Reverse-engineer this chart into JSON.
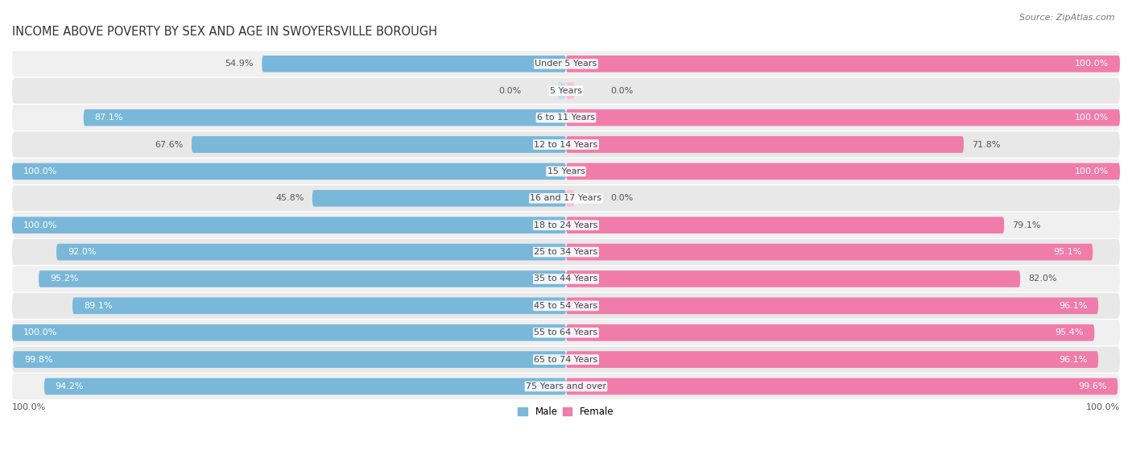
{
  "title": "INCOME ABOVE POVERTY BY SEX AND AGE IN SWOYERSVILLE BOROUGH",
  "source": "Source: ZipAtlas.com",
  "categories": [
    "Under 5 Years",
    "5 Years",
    "6 to 11 Years",
    "12 to 14 Years",
    "15 Years",
    "16 and 17 Years",
    "18 to 24 Years",
    "25 to 34 Years",
    "35 to 44 Years",
    "45 to 54 Years",
    "55 to 64 Years",
    "65 to 74 Years",
    "75 Years and over"
  ],
  "male_values": [
    54.9,
    0.0,
    87.1,
    67.6,
    100.0,
    45.8,
    100.0,
    92.0,
    95.2,
    89.1,
    100.0,
    99.8,
    94.2
  ],
  "female_values": [
    100.0,
    0.0,
    100.0,
    71.8,
    100.0,
    0.0,
    79.1,
    95.1,
    82.0,
    96.1,
    95.4,
    96.1,
    99.6
  ],
  "male_color": "#7ab8d9",
  "female_color": "#f07caa",
  "male_color_light": "#c6dbef",
  "female_color_light": "#fbbfd6",
  "row_bg_even": "#f0f0f0",
  "row_bg_odd": "#e8e8e8",
  "title_fontsize": 10.5,
  "label_fontsize": 8.0,
  "tick_fontsize": 8.0,
  "source_fontsize": 8.0
}
